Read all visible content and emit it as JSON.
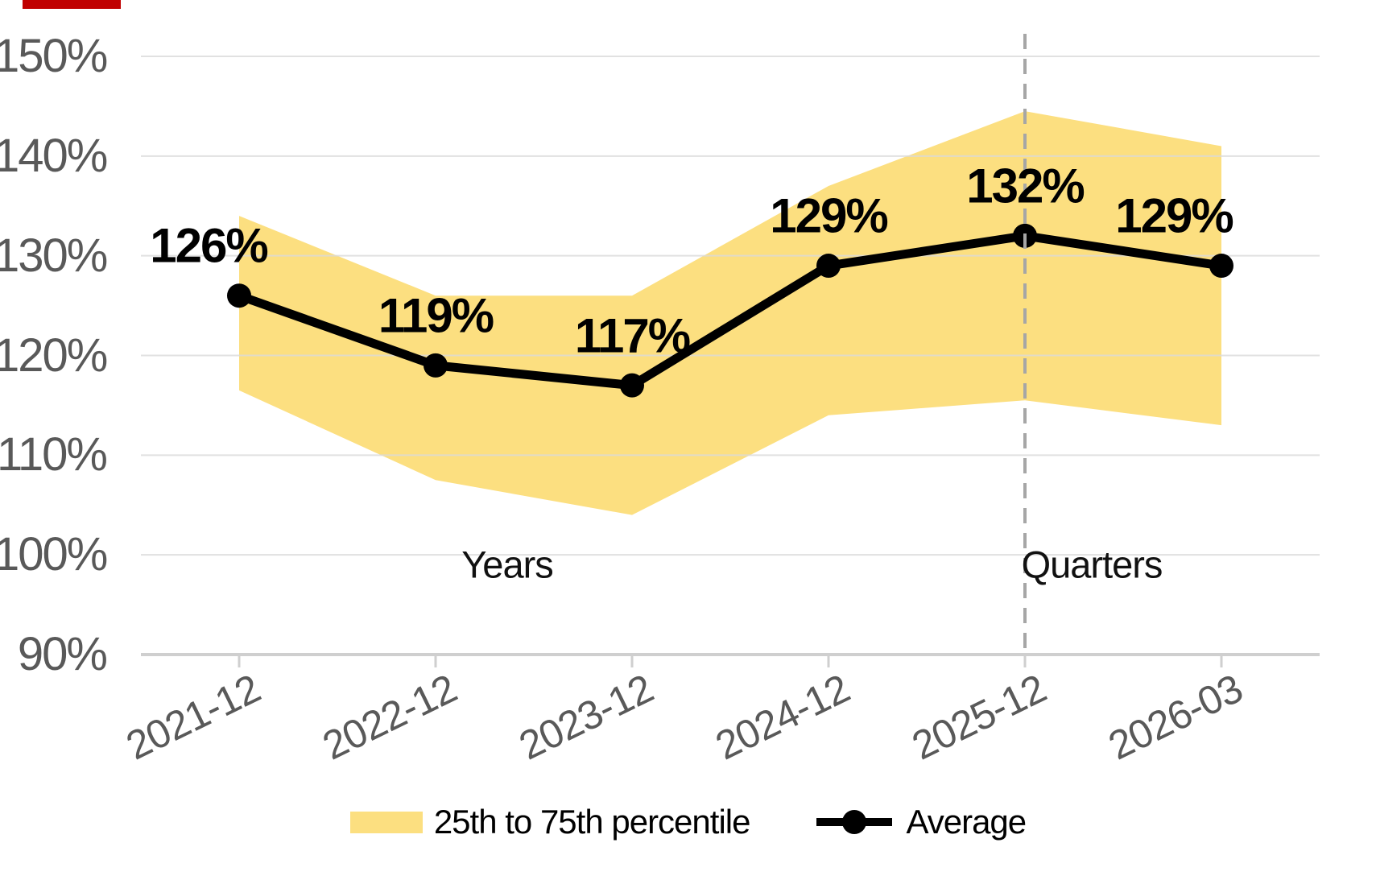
{
  "decoration": {
    "top_bar_color": "#C00000"
  },
  "chart_data": {
    "type": "line",
    "title": "",
    "categories": [
      "2021-12",
      "2022-12",
      "2023-12",
      "2024-12",
      "2025-12",
      "2026-03"
    ],
    "series": [
      {
        "name": "Average",
        "type": "line",
        "color": "#000000",
        "values": [
          126,
          119,
          117,
          129,
          132,
          129
        ],
        "labels": [
          "126%",
          "119%",
          "117%",
          "129%",
          "132%",
          "129%"
        ]
      },
      {
        "name": "25th to 75th percentile",
        "type": "band",
        "color": "#FCDF80",
        "upper": [
          134,
          126,
          126,
          137,
          144.5,
          141
        ],
        "lower": [
          116.5,
          107.5,
          104,
          114,
          115.5,
          113
        ]
      }
    ],
    "ylim": [
      90,
      150
    ],
    "ytick_step": 10,
    "ytick_labels": [
      "90%",
      "100%",
      "110%",
      "120%",
      "130%",
      "140%",
      "150%"
    ],
    "grid": true,
    "gridline_color": "#D9D9D9",
    "axis_line_color": "#CFCFCF",
    "axis_text_color": "#595959",
    "separator": {
      "category": "2025-12",
      "after_category_index": 4,
      "style": "dashed",
      "color": "#A6A6A6"
    },
    "zone_labels": [
      {
        "text": "Years"
      },
      {
        "text": "Quarters"
      }
    ],
    "legend_position": "bottom"
  }
}
